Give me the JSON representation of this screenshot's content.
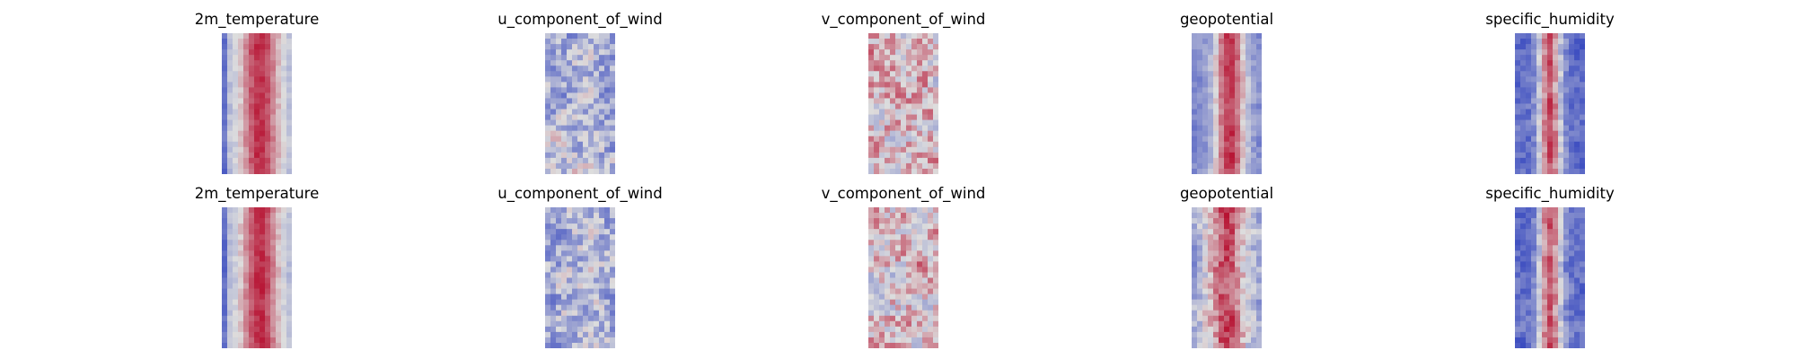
{
  "chart_data": {
    "type": "heatmap",
    "colormap": "coolwarm",
    "colors": {
      "low": "#3b4cc0",
      "mid": "#dddddd",
      "high": "#b40426"
    },
    "rows": [
      {
        "panels": [
          {
            "title": "2m_temperature",
            "pattern": "warm-band",
            "seed": 11
          },
          {
            "title": "u_component_of_wind",
            "pattern": "cool-mixed",
            "seed": 23
          },
          {
            "title": "v_component_of_wind",
            "pattern": "warm-mixed",
            "seed": 37
          },
          {
            "title": "geopotential",
            "pattern": "warm-band-cool-sides",
            "seed": 41
          },
          {
            "title": "specific_humidity",
            "pattern": "humidity",
            "seed": 53
          }
        ]
      },
      {
        "panels": [
          {
            "title": "2m_temperature",
            "pattern": "warm-band",
            "seed": 67
          },
          {
            "title": "u_component_of_wind",
            "pattern": "cool-mixed",
            "seed": 71
          },
          {
            "title": "v_component_of_wind",
            "pattern": "warm-mixed",
            "seed": 83
          },
          {
            "title": "geopotential",
            "pattern": "warm-band-mottled",
            "seed": 97
          },
          {
            "title": "specific_humidity",
            "pattern": "humidity",
            "seed": 101
          }
        ]
      }
    ]
  }
}
